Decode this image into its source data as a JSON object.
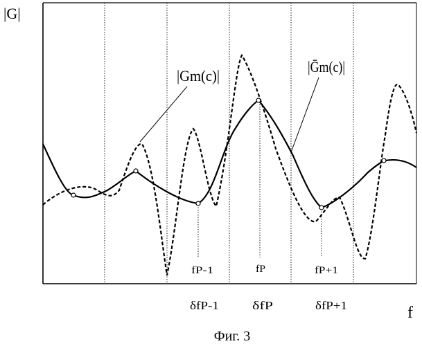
{
  "figure": {
    "y_axis_label": "|G|",
    "x_axis_label": "f",
    "caption": "Фиг. 3",
    "curve_labels": {
      "dashed": "|Gm(c)|",
      "solid": "|Ḡm(c)|"
    },
    "freq_marks": [
      "fP-1",
      "fP",
      "fP+1"
    ],
    "band_labels": [
      "δfP-1",
      "δfP",
      "δfP+1"
    ]
  }
}
